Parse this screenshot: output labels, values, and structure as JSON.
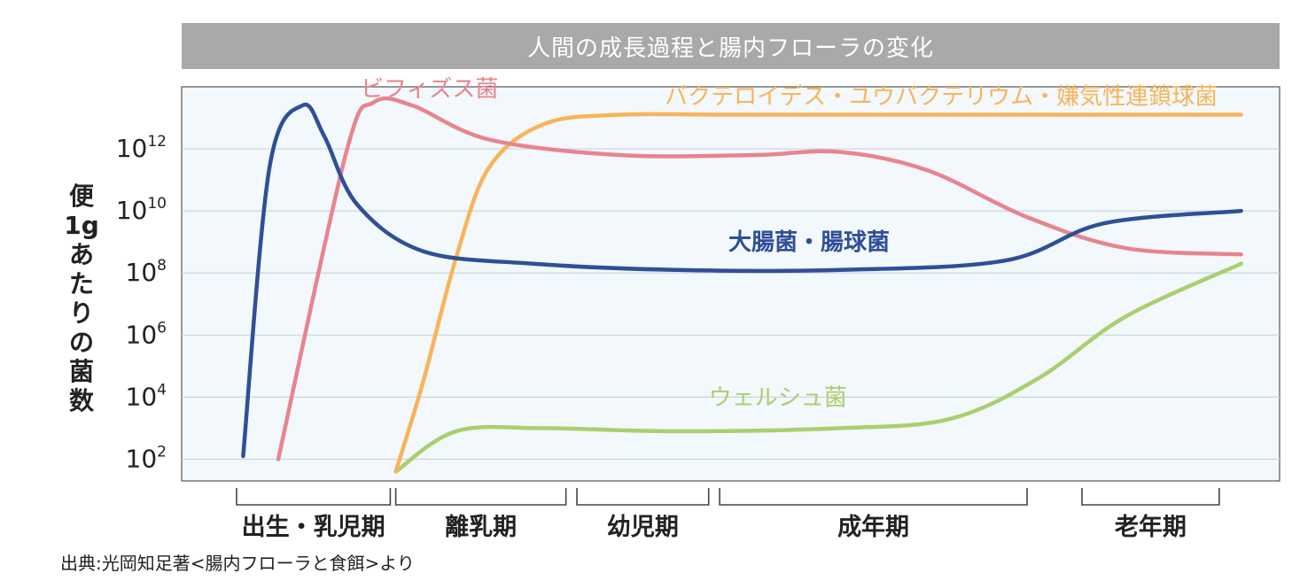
{
  "title": "人間の成長過程と腸内フローラの変化",
  "source": "出典:光岡知足著<腸内フローラと食餌>より",
  "colors": {
    "bifidus": "#e8848e",
    "ecoli": "#2f4f96",
    "bacteroides": "#f8b45a",
    "welch": "#a9cf6e",
    "plot_bg": "#f2f8fb",
    "grid": "#c9d6dc"
  },
  "chart_data": {
    "type": "line",
    "y_scale": "log10",
    "ylabel_chars": [
      "便",
      "1g",
      "あ",
      "た",
      "り",
      "の",
      "菌",
      "数"
    ],
    "ylim_exponent": [
      1.3,
      14
    ],
    "y_ticks": [
      {
        "base": "10",
        "exp": "12",
        "value": 12
      },
      {
        "base": "10",
        "exp": "10",
        "value": 10
      },
      {
        "base": "10",
        "exp": "8",
        "value": 8
      },
      {
        "base": "10",
        "exp": "6",
        "value": 6
      },
      {
        "base": "10",
        "exp": "4",
        "value": 4
      },
      {
        "base": "10",
        "exp": "2",
        "value": 2
      }
    ],
    "x_range": [
      0,
      100
    ],
    "grid": true,
    "periods": [
      {
        "label": "出生・乳児期",
        "start": 5,
        "end": 19
      },
      {
        "label": "離乳期",
        "start": 19.5,
        "end": 35
      },
      {
        "label": "幼児期",
        "start": 36,
        "end": 48
      },
      {
        "label": "成年期",
        "start": 49,
        "end": 77
      },
      {
        "label": "老年期",
        "start": 82,
        "end": 94.5
      }
    ],
    "series": [
      {
        "name": "ビフィズス菌",
        "color": "#e8848e",
        "points": [
          [
            8.8,
            2.0
          ],
          [
            15,
            11.9
          ],
          [
            17.5,
            13.5
          ],
          [
            21,
            13.4
          ],
          [
            28,
            12.3
          ],
          [
            40,
            11.8
          ],
          [
            52,
            11.8
          ],
          [
            60,
            11.9
          ],
          [
            68,
            11.3
          ],
          [
            77,
            9.8
          ],
          [
            86,
            8.8
          ],
          [
            96.5,
            8.6
          ]
        ]
      },
      {
        "name": "バクテロイデス・ユウバクテリウム・嫌気性連鎖球菌",
        "color": "#f8b45a",
        "points": [
          [
            19.5,
            1.6
          ],
          [
            22,
            4.5
          ],
          [
            25,
            8.5
          ],
          [
            28,
            11.4
          ],
          [
            33,
            12.8
          ],
          [
            40,
            13.1
          ],
          [
            50,
            13.1
          ],
          [
            70,
            13.1
          ],
          [
            96.5,
            13.1
          ]
        ]
      },
      {
        "name": "大腸菌・腸球菌",
        "color": "#2f4f96",
        "points": [
          [
            5.6,
            2.1
          ],
          [
            8,
            11.4
          ],
          [
            11,
            13.4
          ],
          [
            13,
            12.4
          ],
          [
            16,
            10.2
          ],
          [
            22,
            8.7
          ],
          [
            32,
            8.3
          ],
          [
            45,
            8.1
          ],
          [
            60,
            8.1
          ],
          [
            75,
            8.4
          ],
          [
            84,
            9.6
          ],
          [
            96.5,
            10.0
          ]
        ]
      },
      {
        "name": "ウェルシュ菌",
        "color": "#a9cf6e",
        "points": [
          [
            19.5,
            1.6
          ],
          [
            25,
            2.9
          ],
          [
            33,
            3.0
          ],
          [
            45,
            2.9
          ],
          [
            60,
            3.0
          ],
          [
            70,
            3.3
          ],
          [
            78,
            4.6
          ],
          [
            86,
            6.6
          ],
          [
            96.5,
            8.3
          ]
        ]
      }
    ],
    "annotations": [
      {
        "series": 0,
        "text": "ビフィズス菌",
        "x": 16.3,
        "y": 13.95,
        "anchor": "start"
      },
      {
        "series": 1,
        "text": "バクテロイデス・ユウバクテリウム・嫌気性連鎖球菌",
        "x": 44,
        "y": 13.7,
        "anchor": "start"
      },
      {
        "series": 2,
        "text": "大腸菌・腸球菌",
        "x": 49.8,
        "y": 9.0,
        "anchor": "start"
      },
      {
        "series": 3,
        "text": "ウェルシュ菌",
        "x": 48,
        "y": 4.0,
        "anchor": "start"
      }
    ]
  }
}
